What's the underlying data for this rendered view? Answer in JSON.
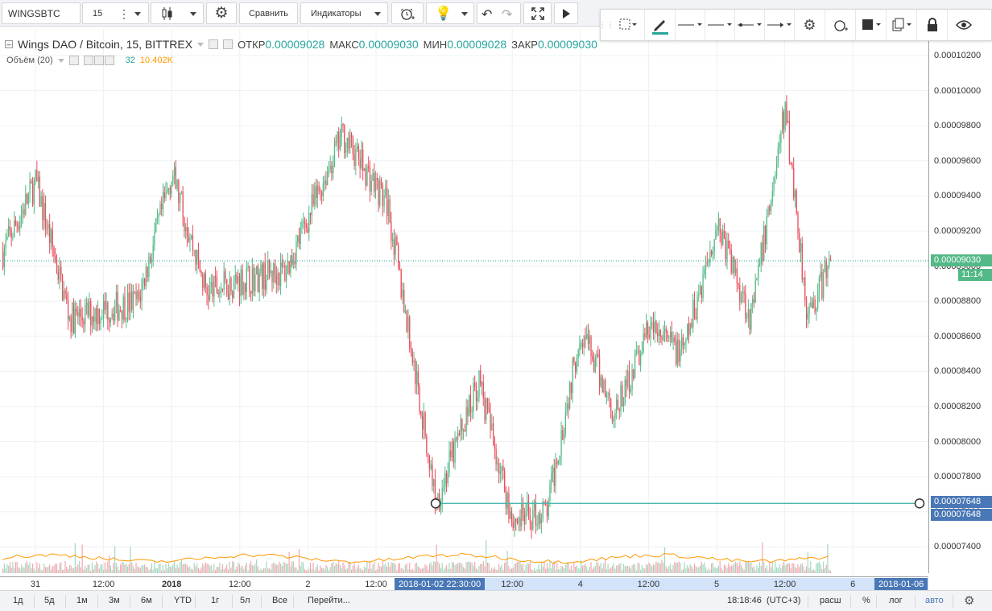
{
  "toolbar": {
    "symbol": "WINGSBTC",
    "interval": "15",
    "compare_label": "Сравнить",
    "indicators_label": "Индикаторы"
  },
  "legend": {
    "title": "Wings DAO / Bitcoin, 15, BITTREX",
    "open_label": "ОТКР",
    "open_value": "0.00009028",
    "high_label": "МАКС",
    "high_value": "0.00009030",
    "low_label": "МИН",
    "low_value": "0.00009028",
    "close_label": "ЗАКР",
    "close_value": "0.00009030",
    "volume_label": "Объём (20)",
    "volume_value": "32",
    "volume_ma": "10.402K"
  },
  "price_axis": {
    "ticks": [
      "0.00010200",
      "0.00010000",
      "0.00009800",
      "0.00009600",
      "0.00009400",
      "0.00009200",
      "0.00009000",
      "0.00008800",
      "0.00008600",
      "0.00008400",
      "0.00008200",
      "0.00008000",
      "0.00007800",
      "0.00007600",
      "0.00007400"
    ],
    "current_price": "0.00009030",
    "countdown": "11:14",
    "line_price_1": "0.00007648",
    "line_price_2": "0.00007648"
  },
  "time_axis": {
    "ticks": [
      "31",
      "12:00",
      "2018",
      "12:00",
      "2",
      "12:00",
      "12:00",
      "4",
      "12:00",
      "5",
      "12:00",
      "6"
    ],
    "crosshair_start": "2018-01-02 22:30:00",
    "crosshair_end": "2018-01-06"
  },
  "bottom": {
    "ranges": [
      "1д",
      "5д",
      "1м",
      "3м",
      "6м",
      "YTD",
      "1г",
      "5л",
      "Все"
    ],
    "goto": "Перейти...",
    "clock": "18:18:46",
    "timezone": "(UTC+3)",
    "session": "расш",
    "percent": "%",
    "log": "лог",
    "auto": "авто"
  },
  "colors": {
    "up": "#53b987",
    "down": "#eb4d5c",
    "accent": "#4a78b6",
    "hline": "#4db6ac"
  },
  "chart_data": {
    "type": "candlestick",
    "symbol": "WINGSBTC",
    "interval": "15",
    "exchange": "BITTREX",
    "x_range": [
      "2017-12-31",
      "2018-01-06"
    ],
    "ylim": [
      7.25e-05,
      0.0001028
    ],
    "key_points": [
      {
        "t": "2017-12-30 12:00",
        "close": 8.66e-05
      },
      {
        "t": "2017-12-31 00:00",
        "close": 9.48e-05
      },
      {
        "t": "2017-12-31 06:00",
        "close": 8.7e-05
      },
      {
        "t": "2017-12-31 18:00",
        "close": 8.8e-05
      },
      {
        "t": "2018-01-01 00:00",
        "close": 9.53e-05
      },
      {
        "t": "2018-01-01 06:00",
        "close": 8.85e-05
      },
      {
        "t": "2018-01-01 12:00",
        "close": 8.92e-05
      },
      {
        "t": "2018-01-01 20:00",
        "close": 8.97e-05
      },
      {
        "t": "2018-01-02 06:00",
        "close": 9.75e-05
      },
      {
        "t": "2018-01-02 14:00",
        "close": 9.35e-05
      },
      {
        "t": "2018-01-02 22:30",
        "close": 7.65e-05
      },
      {
        "t": "2018-01-03 06:00",
        "close": 8.35e-05
      },
      {
        "t": "2018-01-03 12:00",
        "close": 7.55e-05
      },
      {
        "t": "2018-01-03 18:00",
        "close": 7.6e-05
      },
      {
        "t": "2018-01-04 00:00",
        "close": 8.65e-05
      },
      {
        "t": "2018-01-04 06:00",
        "close": 8.15e-05
      },
      {
        "t": "2018-01-04 12:00",
        "close": 8.65e-05
      },
      {
        "t": "2018-01-04 18:00",
        "close": 8.5e-05
      },
      {
        "t": "2018-01-05 00:00",
        "close": 9.25e-05
      },
      {
        "t": "2018-01-05 06:00",
        "close": 8.7e-05
      },
      {
        "t": "2018-01-05 12:00",
        "close": 9.9e-05
      },
      {
        "t": "2018-01-05 16:00",
        "close": 8.7e-05
      },
      {
        "t": "2018-01-05 20:00",
        "close": 9.03e-05
      }
    ],
    "horizontal_line": 7.648e-05,
    "volume_max": "10.402K"
  }
}
